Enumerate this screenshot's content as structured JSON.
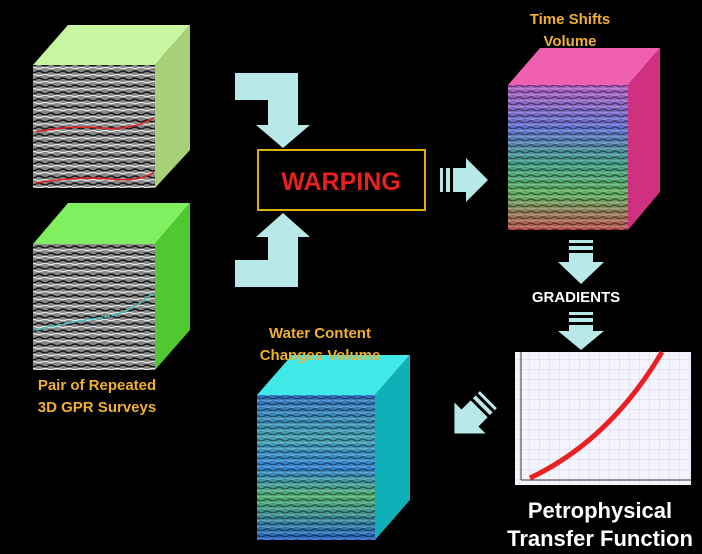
{
  "labels": {
    "time_shifts": [
      "Time Shifts",
      "Volume"
    ],
    "warping": "WARPING",
    "gradients": "GRADIENTS",
    "water_content": [
      "Water Content",
      "Changes Volume"
    ],
    "surveys": [
      "Pair of Repeated",
      "3D GPR Surveys"
    ],
    "transfer": [
      "Petrophysical",
      "Transfer Function"
    ]
  }
}
